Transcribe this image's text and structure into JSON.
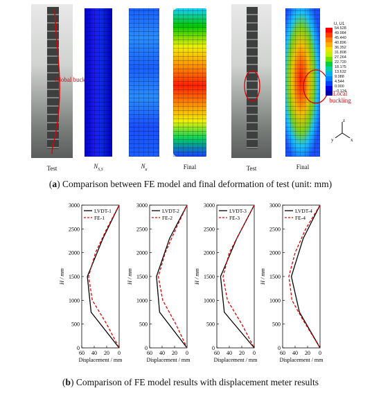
{
  "panel_a": {
    "images": [
      {
        "label": "Test",
        "sub": ""
      },
      {
        "label": "N",
        "sub": "S,S"
      },
      {
        "label": "N",
        "sub": "u"
      },
      {
        "label": "Final",
        "sub": ""
      },
      {
        "label": "Test",
        "sub": ""
      },
      {
        "label": "Final",
        "sub": ""
      }
    ],
    "annotation_left": "Global buckling",
    "annotation_right": "Local buckling",
    "legend": {
      "title": "U, U1",
      "values": [
        "54.528",
        "49.984",
        "45.440",
        "40.896",
        "36.352",
        "31.808",
        "27.264",
        "22.720",
        "18.175",
        "13.632",
        "9.088",
        "4.544",
        "0.000",
        "−0.124"
      ],
      "colors": [
        "#ff0000",
        "#ff4000",
        "#ff8000",
        "#ffb000",
        "#f0e000",
        "#c0f000",
        "#70e000",
        "#00d040",
        "#00d0a0",
        "#00b0f0",
        "#0080ff",
        "#0040ff",
        "#0000e0",
        "#0000a0"
      ]
    },
    "axes": {
      "z": "z",
      "y": "y",
      "x": "x"
    },
    "caption_prefix": "(a)",
    "caption": "Comparison between FE model and final deformation of test (unit: mm)"
  },
  "panel_b": {
    "caption_prefix": "(b)",
    "caption": "Comparison of FE model results with displacement meter results",
    "xlabel": "Displacement / mm",
    "ylabel": "H / mm",
    "y_ticks": [
      "0",
      "500",
      "1000",
      "1500",
      "2000",
      "2500",
      "3000"
    ],
    "x_ticks": [
      "60",
      "40",
      "20",
      "0"
    ],
    "colors": {
      "test": "#000000",
      "fe": "#e00000"
    }
  },
  "chart_data": [
    {
      "type": "line",
      "xlabel": "Displacement / mm",
      "ylabel": "H / mm",
      "xlim": [
        60,
        0
      ],
      "ylim": [
        0,
        3000
      ],
      "series": [
        {
          "name": "LVDT-1",
          "style": "solid",
          "points": [
            [
              0,
              3000
            ],
            [
              26,
              2300
            ],
            [
              51,
              1500
            ],
            [
              45,
              750
            ],
            [
              0,
              0
            ]
          ]
        },
        {
          "name": "FE-1",
          "style": "dashed",
          "points": [
            [
              0,
              3000
            ],
            [
              20,
              2500
            ],
            [
              38,
              2000
            ],
            [
              49,
              1500
            ],
            [
              43,
              1000
            ],
            [
              20,
              500
            ],
            [
              0,
              0
            ]
          ]
        }
      ]
    },
    {
      "type": "line",
      "xlabel": "Displacement / mm",
      "ylabel": "H / mm",
      "xlim": [
        60,
        0
      ],
      "ylim": [
        0,
        3000
      ],
      "series": [
        {
          "name": "LVDT-2",
          "style": "solid",
          "points": [
            [
              0,
              3000
            ],
            [
              28,
              2300
            ],
            [
              49,
              1500
            ],
            [
              44,
              750
            ],
            [
              0,
              0
            ]
          ]
        },
        {
          "name": "FE-2",
          "style": "dashed",
          "points": [
            [
              0,
              3000
            ],
            [
              18,
              2500
            ],
            [
              35,
              2000
            ],
            [
              46,
              1500
            ],
            [
              39,
              1000
            ],
            [
              18,
              500
            ],
            [
              0,
              0
            ]
          ]
        }
      ]
    },
    {
      "type": "line",
      "xlabel": "Displacement / mm",
      "ylabel": "H / mm",
      "xlim": [
        60,
        0
      ],
      "ylim": [
        0,
        3000
      ],
      "series": [
        {
          "name": "LVDT-3",
          "style": "solid",
          "points": [
            [
              0,
              3000
            ],
            [
              28,
              2300
            ],
            [
              54,
              1500
            ],
            [
              48,
              750
            ],
            [
              0,
              0
            ]
          ]
        },
        {
          "name": "FE-3",
          "style": "dashed",
          "points": [
            [
              0,
              3000
            ],
            [
              20,
              2500
            ],
            [
              40,
              2000
            ],
            [
              50,
              1500
            ],
            [
              43,
              1000
            ],
            [
              20,
              500
            ],
            [
              0,
              0
            ]
          ]
        }
      ]
    },
    {
      "type": "line",
      "xlabel": "Displacement / mm",
      "ylabel": "H / mm",
      "xlim": [
        60,
        0
      ],
      "ylim": [
        0,
        3000
      ],
      "series": [
        {
          "name": "LVDT-4",
          "style": "solid",
          "points": [
            [
              0,
              3000
            ],
            [
              27,
              2300
            ],
            [
              46,
              1500
            ],
            [
              33,
              750
            ],
            [
              0,
              0
            ]
          ]
        },
        {
          "name": "FE-4",
          "style": "dashed",
          "points": [
            [
              0,
              3000
            ],
            [
              23,
              2500
            ],
            [
              40,
              2000
            ],
            [
              50,
              1500
            ],
            [
              45,
              1000
            ],
            [
              28,
              600
            ],
            [
              0,
              0
            ]
          ]
        }
      ]
    }
  ]
}
